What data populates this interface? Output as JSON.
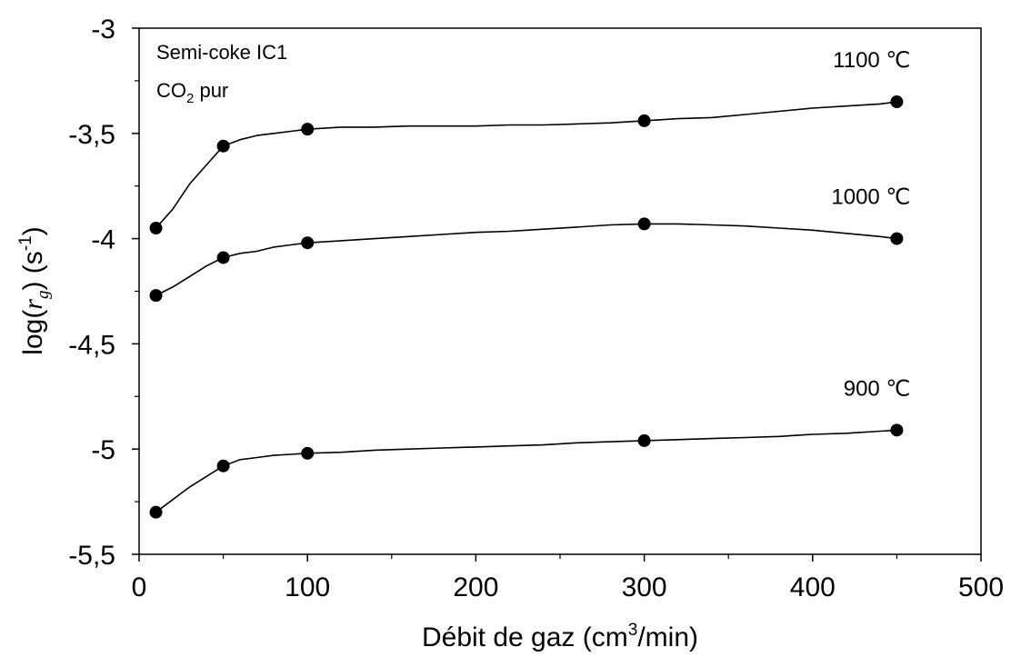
{
  "chart_data": {
    "type": "line",
    "xlabel_prefix": "Débit de gaz (cm",
    "xlabel_sup": "3",
    "xlabel_suffix": "/min)",
    "ylabel_prefix": "log(",
    "ylabel_var": "r",
    "ylabel_sub": "g",
    "ylabel_mid": ") (s",
    "ylabel_sup": "-1",
    "ylabel_suffix": ")",
    "xlim": [
      0,
      500
    ],
    "ylim": [
      -5.5,
      -3
    ],
    "xticks": [
      0,
      100,
      200,
      300,
      400,
      500
    ],
    "xtick_labels": [
      "0",
      "100",
      "200",
      "300",
      "400",
      "500"
    ],
    "yticks": [
      -3,
      -3.5,
      -4,
      -4.5,
      -5,
      -5.5
    ],
    "ytick_labels": [
      "-3",
      "-3,5",
      "-4",
      "-4,5",
      "-5",
      "-5,5"
    ],
    "grid": false,
    "annotation_line1": "Semi-coke IC1",
    "annotation_line2_prefix": "CO",
    "annotation_line2_sub": "2",
    "annotation_line2_suffix": " pur",
    "series": [
      {
        "label": "1100 ℃",
        "x": [
          10,
          50,
          100,
          300,
          450
        ],
        "y": [
          -3.95,
          -3.56,
          -3.48,
          -3.44,
          -3.35
        ],
        "curve_x": [
          10,
          20,
          30,
          40,
          50,
          60,
          70,
          80,
          90,
          100,
          120,
          140,
          160,
          180,
          200,
          220,
          240,
          260,
          280,
          300,
          320,
          340,
          360,
          380,
          400,
          420,
          440,
          450
        ],
        "curve_y": [
          -3.95,
          -3.86,
          -3.74,
          -3.65,
          -3.56,
          -3.53,
          -3.51,
          -3.5,
          -3.49,
          -3.48,
          -3.47,
          -3.47,
          -3.465,
          -3.465,
          -3.465,
          -3.46,
          -3.46,
          -3.455,
          -3.45,
          -3.44,
          -3.43,
          -3.425,
          -3.41,
          -3.395,
          -3.38,
          -3.37,
          -3.36,
          -3.35
        ]
      },
      {
        "label": "1000 ℃",
        "x": [
          10,
          50,
          100,
          300,
          450
        ],
        "y": [
          -4.27,
          -4.09,
          -4.02,
          -3.93,
          -4.0
        ],
        "curve_x": [
          10,
          20,
          30,
          40,
          50,
          60,
          70,
          80,
          90,
          100,
          120,
          140,
          160,
          180,
          200,
          220,
          240,
          260,
          280,
          300,
          320,
          340,
          360,
          380,
          400,
          420,
          440,
          450
        ],
        "curve_y": [
          -4.27,
          -4.23,
          -4.18,
          -4.13,
          -4.09,
          -4.07,
          -4.06,
          -4.04,
          -4.03,
          -4.02,
          -4.01,
          -4.0,
          -3.99,
          -3.98,
          -3.97,
          -3.965,
          -3.955,
          -3.945,
          -3.935,
          -3.93,
          -3.93,
          -3.935,
          -3.94,
          -3.95,
          -3.96,
          -3.975,
          -3.99,
          -4.0
        ]
      },
      {
        "label": "900 ℃",
        "x": [
          10,
          50,
          100,
          300,
          450
        ],
        "y": [
          -5.3,
          -5.08,
          -5.02,
          -4.96,
          -4.91
        ],
        "curve_x": [
          10,
          20,
          30,
          40,
          50,
          60,
          70,
          80,
          90,
          100,
          120,
          140,
          160,
          180,
          200,
          220,
          240,
          260,
          280,
          300,
          320,
          340,
          360,
          380,
          400,
          420,
          440,
          450
        ],
        "curve_y": [
          -5.3,
          -5.24,
          -5.18,
          -5.13,
          -5.08,
          -5.05,
          -5.04,
          -5.03,
          -5.025,
          -5.02,
          -5.015,
          -5.005,
          -5.0,
          -4.995,
          -4.99,
          -4.985,
          -4.98,
          -4.97,
          -4.965,
          -4.96,
          -4.955,
          -4.95,
          -4.945,
          -4.94,
          -4.93,
          -4.925,
          -4.915,
          -4.91
        ]
      }
    ]
  }
}
